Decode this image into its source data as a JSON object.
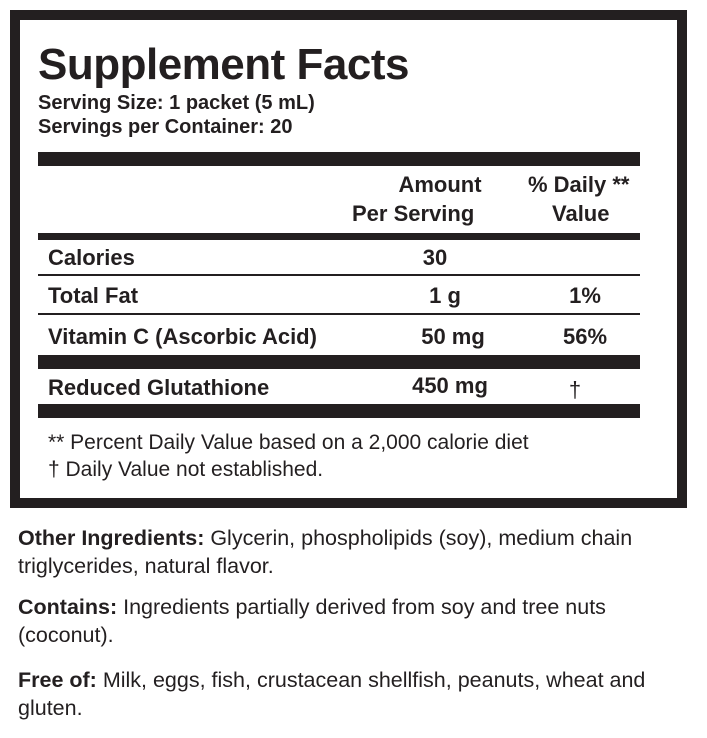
{
  "title": "Supplement Facts",
  "serving_size": "Serving Size: 1 packet (5 mL)",
  "servings_label": "Servings per Container:",
  "servings_value": "20",
  "headers": {
    "amount1": "Amount",
    "amount2": "Per Serving",
    "dv1": "% Daily **",
    "dv2": "Value"
  },
  "rows": [
    {
      "name": "Calories",
      "amount": "30",
      "dv": ""
    },
    {
      "name": "Total Fat",
      "amount": "1 g",
      "dv": "1%"
    },
    {
      "name": "Vitamin C (Ascorbic Acid)",
      "amount": "50 mg",
      "dv": "56%"
    },
    {
      "name": "Reduced Glutathione",
      "amount": "450 mg",
      "dv": "†"
    }
  ],
  "footnotes": [
    "** Percent Daily Value based on a 2,000 calorie diet",
    "† Daily Value not established."
  ],
  "other": {
    "label": "Other Ingredients:",
    "text": " Glycerin, phospholipids (soy), medium chain triglycerides, natural flavor."
  },
  "contains": {
    "label": "Contains:",
    "text": " Ingredients partially derived from soy and tree nuts (coconut)."
  },
  "free": {
    "label": "Free of:",
    "text": " Milk, eggs, fish, crustacean shellfish, peanuts, wheat and gluten."
  }
}
